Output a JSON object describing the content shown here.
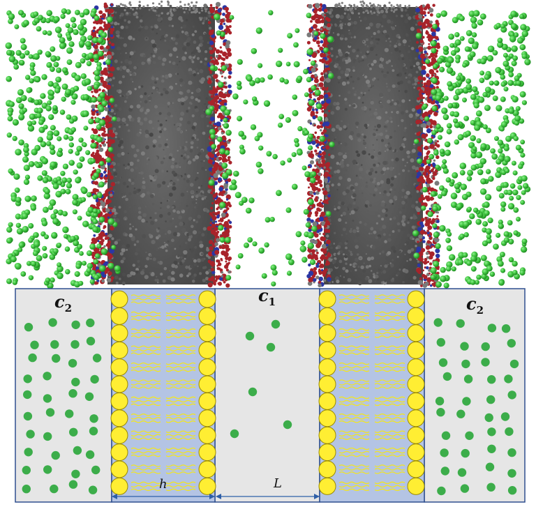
{
  "simulation_panel": {
    "description_icon": "md-snapshot-icon",
    "colors": {
      "ions": "#3fc33f",
      "carbon": "#5c5c5c",
      "oxygen": "#a8232a",
      "nitrogen": "#2b37a3"
    }
  },
  "schematic_panel": {
    "labels": {
      "left_reservoir": {
        "main": "c",
        "sub": "2"
      },
      "middle_reservoir": {
        "main": "c",
        "sub": "1"
      },
      "right_reservoir": {
        "main": "c",
        "sub": "2"
      },
      "membrane_thickness": "h",
      "gap_width": "L"
    },
    "colors": {
      "reservoir_fill": "#e6e6e6",
      "membrane_fill": "#b4c4e4",
      "border": "#2e4f8f",
      "head_fill": "#ffee33",
      "head_stroke": "#9a8a00",
      "tail": "#f2e522",
      "ion": "#3cad4a",
      "arrow": "#2e5fa8"
    }
  }
}
